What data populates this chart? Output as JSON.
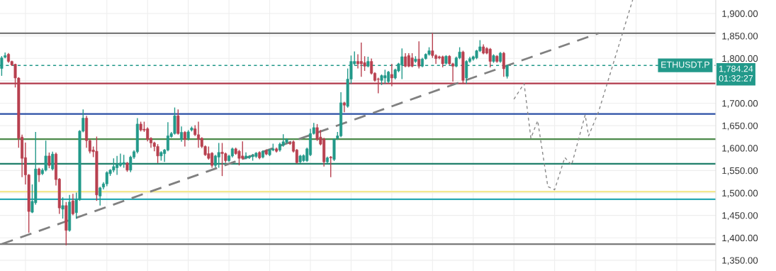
{
  "chart_data": {
    "type": "candlestick",
    "categories": [
      null,
      null,
      null,
      null,
      null,
      null,
      null,
      null,
      null,
      null,
      null,
      null,
      null,
      null,
      null,
      null,
      null,
      null,
      null,
      null,
      null,
      null,
      null,
      null,
      null,
      null,
      null,
      null,
      null,
      null,
      null,
      null,
      null,
      null,
      null,
      null,
      null,
      null,
      null,
      null,
      null,
      null,
      null,
      null,
      null,
      null,
      null,
      null,
      null,
      null,
      null,
      null,
      null,
      null,
      null,
      null,
      null,
      null,
      null,
      null,
      null,
      null,
      null,
      null,
      null,
      null,
      null,
      null,
      null,
      null,
      null,
      null,
      null,
      null,
      null,
      null,
      null,
      null,
      null,
      null,
      null,
      null,
      null,
      null,
      null,
      null,
      null,
      null,
      null,
      null,
      null,
      null,
      null,
      null,
      null,
      null,
      null,
      null,
      null,
      null,
      null,
      null,
      null,
      null,
      null,
      null,
      null,
      null,
      null,
      null,
      null,
      null,
      null,
      null,
      null,
      null,
      null,
      null,
      null,
      null,
      null,
      null,
      null,
      null,
      null,
      null,
      null,
      null,
      null,
      null,
      null,
      null,
      null,
      null,
      null,
      null,
      null,
      null,
      null,
      null,
      null,
      null,
      null,
      null,
      null,
      null,
      null,
      null,
      null,
      null,
      null,
      null,
      null,
      null,
      null,
      null,
      null,
      null,
      null,
      null,
      null,
      null,
      null,
      null,
      null,
      null,
      null,
      null,
      null,
      null,
      null,
      null,
      null,
      null,
      null,
      null,
      null,
      null,
      null,
      null,
      null,
      null,
      null,
      null,
      null,
      null,
      null,
      null,
      null,
      null,
      null,
      null,
      null,
      null,
      null,
      null,
      null,
      null,
      null,
      null,
      null,
      null,
      null,
      null,
      null,
      null,
      null,
      null,
      null,
      null,
      null
    ],
    "ohlc": [
      [
        1777.3,
        1805,
        1761,
        1801.0
      ],
      [
        1802.5,
        1813,
        1800,
        1806.2
      ],
      [
        1808.9,
        1812,
        1790,
        1793.1
      ],
      [
        1793,
        1795,
        1783,
        1785.2
      ],
      [
        1786.7,
        1788,
        1735.1,
        1756.2
      ],
      [
        1756,
        1758,
        1600.8,
        1621.9
      ],
      [
        1624.5,
        1630,
        1535,
        1577.1
      ],
      [
        1578.7,
        1612,
        1519,
        1540.3
      ],
      [
        1540,
        1542,
        1411.2,
        1458.6
      ],
      [
        1457,
        1519,
        1455,
        1481.3
      ],
      [
        1478.1,
        1636.1,
        1474,
        1553.4
      ],
      [
        1553.4,
        1556,
        1524.5,
        1540.3
      ],
      [
        1542.9,
        1555,
        1540,
        1550.8
      ],
      [
        1550.8,
        1616.6,
        1548,
        1582.4
      ],
      [
        1582.4,
        1590,
        1555,
        1561.3
      ],
      [
        1553.4,
        1591.9,
        1550,
        1586.6
      ],
      [
        1586.6,
        1590,
        1516.5,
        1529.7
      ],
      [
        1530.8,
        1533,
        1453.4,
        1466.5
      ],
      [
        1463.9,
        1490.2,
        1442.8,
        1471.8
      ],
      [
        1471.8,
        1479.7,
        1383.3,
        1416.5
      ],
      [
        1416.5,
        1495.5,
        1413.8,
        1479.7
      ],
      [
        1482.3,
        1498.1,
        1450,
        1453.4
      ],
      [
        1456,
        1500.8,
        1442.8,
        1484.9
      ],
      [
        1484.9,
        1640,
        1482.3,
        1637.7
      ],
      [
        1637.7,
        1686.1,
        1635,
        1666.7
      ],
      [
        1666.7,
        1672,
        1600.8,
        1616.6
      ],
      [
        1616.6,
        1620,
        1588,
        1592.9
      ],
      [
        1595.6,
        1603.5,
        1579.8,
        1591.9
      ],
      [
        1592.9,
        1625.6,
        1482.3,
        1495.5
      ],
      [
        1492.9,
        1513.9,
        1471.8,
        1511.3
      ],
      [
        1512.9,
        1524,
        1508,
        1520.2
      ],
      [
        1520.2,
        1548,
        1515,
        1545.5
      ],
      [
        1542.9,
        1553,
        1538,
        1550.8
      ],
      [
        1550.8,
        1577.1,
        1546,
        1558.7
      ],
      [
        1556.1,
        1582.4,
        1540.3,
        1564.0
      ],
      [
        1561.3,
        1587.6,
        1558,
        1566.6
      ],
      [
        1564.0,
        1585.0,
        1556.1,
        1567.6
      ],
      [
        1566.6,
        1569,
        1547,
        1550.8
      ],
      [
        1550.8,
        1583,
        1546,
        1579.8
      ],
      [
        1579.8,
        1595,
        1576,
        1591.9
      ],
      [
        1591.9,
        1666.7,
        1588,
        1653.5
      ],
      [
        1653.5,
        1658.8,
        1637,
        1640.3
      ],
      [
        1642,
        1658.8,
        1636,
        1640
      ],
      [
        1643,
        1646,
        1615,
        1619.3
      ],
      [
        1621.9,
        1624,
        1600.8,
        1611.4
      ],
      [
        1611.4,
        1614,
        1593,
        1603.5
      ],
      [
        1603.5,
        1608.7,
        1566.6,
        1582.4
      ],
      [
        1582.4,
        1593,
        1571.9,
        1590.3
      ],
      [
        1587.6,
        1598,
        1569.2,
        1595.6
      ],
      [
        1595.6,
        1657.7,
        1593,
        1627.2
      ],
      [
        1625.6,
        1636,
        1623,
        1632.4
      ],
      [
        1632.4,
        1690.4,
        1630,
        1671.9
      ],
      [
        1671.9,
        1686.1,
        1630,
        1632.4
      ],
      [
        1619.3,
        1648.2,
        1614,
        1635.1
      ],
      [
        1635.1,
        1638,
        1603.5,
        1619.3
      ],
      [
        1621.9,
        1640,
        1617,
        1636.1
      ],
      [
        1640.3,
        1648,
        1637,
        1644.5
      ],
      [
        1643,
        1650.9,
        1627,
        1629.8
      ],
      [
        1629.8,
        1658.8,
        1600.8,
        1619.3
      ],
      [
        1621.9,
        1624,
        1600,
        1603.5
      ],
      [
        1603.5,
        1606,
        1582.4,
        1585
      ],
      [
        1587.6,
        1603.5,
        1574,
        1577.1
      ],
      [
        1588.7,
        1591,
        1556.1,
        1561.3
      ],
      [
        1561.3,
        1585,
        1557,
        1582.4
      ],
      [
        1579.8,
        1611.4,
        1556.1,
        1590.3
      ],
      [
        1590.8,
        1611.4,
        1537.6,
        1587.6
      ],
      [
        1587.6,
        1590,
        1567,
        1571.9
      ],
      [
        1571.9,
        1585,
        1569,
        1582.4
      ],
      [
        1582.4,
        1601,
        1579,
        1598.2
      ],
      [
        1598.2,
        1601,
        1585,
        1587.6
      ],
      [
        1592.9,
        1596,
        1561.3,
        1577.1
      ],
      [
        1582.4,
        1615.1,
        1574,
        1577.1
      ],
      [
        1578.2,
        1590.3,
        1575,
        1582.4
      ],
      [
        1578.7,
        1584,
        1576,
        1581.3
      ],
      [
        1580.8,
        1587,
        1571.9,
        1583.4
      ],
      [
        1581.3,
        1591,
        1578,
        1588.7
      ],
      [
        1590.3,
        1593,
        1575,
        1578.2
      ],
      [
        1579.8,
        1595,
        1577,
        1591.9
      ],
      [
        1594,
        1597,
        1584,
        1586.6
      ],
      [
        1585.0,
        1598,
        1582,
        1595.6
      ],
      [
        1595.6,
        1609.8,
        1593,
        1598.2
      ],
      [
        1598.2,
        1601,
        1590,
        1592.9
      ],
      [
        1595.6,
        1612,
        1592,
        1608.7
      ],
      [
        1606.1,
        1630.8,
        1603,
        1614
      ],
      [
        1613,
        1622,
        1610,
        1619.3
      ],
      [
        1611.4,
        1614,
        1607,
        1609.8
      ],
      [
        1614,
        1617,
        1590,
        1592.9
      ],
      [
        1595.6,
        1598,
        1565,
        1567.6
      ],
      [
        1569.2,
        1585,
        1566,
        1582.4
      ],
      [
        1571.9,
        1586,
        1569,
        1583.4
      ],
      [
        1571.9,
        1601,
        1569,
        1598.2
      ],
      [
        1585,
        1643,
        1582,
        1632.4
      ],
      [
        1632.4,
        1656.1,
        1630,
        1645.6
      ],
      [
        1645.6,
        1653.5,
        1616,
        1619.3
      ],
      [
        1624.5,
        1640.3,
        1606,
        1608.7
      ],
      [
        1620.3,
        1623,
        1558.7,
        1569.2
      ],
      [
        1569.2,
        1581,
        1566,
        1578.2
      ],
      [
        1580,
        1582,
        1535,
        1578
      ],
      [
        1574.5,
        1622,
        1571,
        1619.3
      ],
      [
        1621.9,
        1636.1,
        1618,
        1627.2
      ],
      [
        1627.2,
        1724.6,
        1624,
        1700.9
      ],
      [
        1700.9,
        1703,
        1679.8,
        1695.6
      ],
      [
        1693,
        1777.3,
        1690,
        1753.6
      ],
      [
        1753.6,
        1806.2,
        1743,
        1793.1
      ],
      [
        1787.8,
        1815.2,
        1785,
        1793.1
      ],
      [
        1793.1,
        1808.9,
        1777.3,
        1787.8
      ],
      [
        1793.1,
        1835.2,
        1758.8,
        1787.8
      ],
      [
        1790.4,
        1804.7,
        1772,
        1782.5
      ],
      [
        1782.5,
        1803.6,
        1780,
        1793.1
      ],
      [
        1793.1,
        1799.4,
        1764,
        1766.7
      ],
      [
        1766.7,
        1769,
        1748,
        1750.9
      ],
      [
        1754,
        1757,
        1722,
        1753
      ],
      [
        1750.9,
        1764,
        1740.4,
        1761.5
      ],
      [
        1756.2,
        1774.6,
        1743,
        1761.5
      ],
      [
        1748.3,
        1772,
        1745,
        1769.4
      ],
      [
        1764.1,
        1787.8,
        1737.8,
        1756.2
      ],
      [
        1756.2,
        1777,
        1753,
        1774.6
      ],
      [
        1772,
        1790,
        1769,
        1787.8
      ],
      [
        1785.2,
        1822,
        1753.6,
        1803.6
      ],
      [
        1803.6,
        1811.5,
        1780,
        1782.5
      ],
      [
        1806.2,
        1811.5,
        1780,
        1782.5
      ],
      [
        1801,
        1811.5,
        1780,
        1782.5
      ],
      [
        1793.1,
        1804.7,
        1790,
        1798.3
      ],
      [
        1798.3,
        1837.8,
        1777.3,
        1782.5
      ],
      [
        1782.5,
        1801,
        1780,
        1798.3
      ],
      [
        1799.4,
        1811,
        1797,
        1808.9
      ],
      [
        1808.9,
        1824.7,
        1806,
        1816.8
      ],
      [
        1816.8,
        1856.3,
        1801,
        1806.2
      ],
      [
        1806.2,
        1809,
        1787.8,
        1799.4
      ],
      [
        1803.6,
        1806,
        1798,
        1801
      ],
      [
        1803.6,
        1806,
        1779.9,
        1787.8
      ],
      [
        1788.8,
        1807,
        1786,
        1804.7
      ],
      [
        1804.7,
        1807,
        1785,
        1787.8
      ],
      [
        1787.8,
        1790,
        1748.3,
        1782.5
      ],
      [
        1782.5,
        1804,
        1780,
        1801
      ],
      [
        1801,
        1824.7,
        1798,
        1814.1
      ],
      [
        1814.1,
        1817,
        1743,
        1750.9
      ],
      [
        1756.2,
        1796,
        1743,
        1793.1
      ],
      [
        1793.1,
        1803.6,
        1790,
        1799.4
      ],
      [
        1798.3,
        1806,
        1795,
        1803.6
      ],
      [
        1801,
        1819,
        1798,
        1816.8
      ],
      [
        1816.8,
        1840.5,
        1814,
        1825.7
      ],
      [
        1825.7,
        1831,
        1809,
        1811.5
      ],
      [
        1822,
        1825,
        1809,
        1811.5
      ],
      [
        1820.5,
        1823,
        1779.9,
        1793.1
      ],
      [
        1793.1,
        1809,
        1790,
        1806.2
      ],
      [
        1804.7,
        1807,
        1790,
        1793.1
      ],
      [
        1793.1,
        1814,
        1790,
        1811.5
      ],
      [
        1811.5,
        1814,
        1759,
        1776.7
      ],
      [
        1760,
        1786,
        1755,
        1784.24
      ],
      null,
      null,
      null,
      null,
      null,
      null,
      null,
      null,
      null,
      null,
      null,
      null,
      null,
      null,
      null,
      null,
      null,
      null,
      null,
      null,
      null,
      null,
      null,
      null,
      null,
      null,
      null,
      null,
      null,
      null,
      null,
      null,
      null,
      null,
      null,
      null,
      null,
      null,
      null,
      null,
      null,
      null,
      null,
      null,
      null,
      null,
      null,
      null,
      null,
      null,
      null,
      null,
      null,
      null,
      null,
      null,
      null,
      null,
      null,
      null,
      null
    ],
    "colors": [
      "#22998a",
      "#22998a",
      "#b8404f",
      "#b8404f",
      "#b8404f",
      "#b8404f",
      "#b8404f",
      "#b8404f",
      "#b8404f",
      "#22998a",
      "#22998a",
      "#b8404f",
      "#22998a",
      "#22998a",
      "#b8404f",
      "#22998a",
      "#b8404f",
      "#b8404f",
      "#22998a",
      "#b8404f",
      "#22998a",
      "#b8404f",
      "#22998a",
      "#22998a",
      "#22998a",
      "#b8404f",
      "#b8404f",
      "#b8404f",
      "#b8404f",
      "#22998a",
      "#22998a",
      "#22998a",
      "#22998a",
      "#22998a",
      "#22998a",
      "#22998a",
      "#22998a",
      "#b8404f",
      "#22998a",
      "#22998a",
      "#22998a",
      "#b8404f",
      "#b8404f",
      "#b8404f",
      "#b8404f",
      "#b8404f",
      "#b8404f",
      "#22998a",
      "#22998a",
      "#22998a",
      "#22998a",
      "#22998a",
      "#b8404f",
      "#22998a",
      "#b8404f",
      "#22998a",
      "#22998a",
      "#b8404f",
      "#b8404f",
      "#b8404f",
      "#b8404f",
      "#b8404f",
      "#b8404f",
      "#22998a",
      "#22998a",
      "#b8404f",
      "#b8404f",
      "#22998a",
      "#22998a",
      "#b8404f",
      "#b8404f",
      "#b8404f",
      "#22998a",
      "#22998a",
      "#22998a",
      "#22998a",
      "#b8404f",
      "#22998a",
      "#b8404f",
      "#22998a",
      "#22998a",
      "#b8404f",
      "#22998a",
      "#22998a",
      "#22998a",
      "#b8404f",
      "#b8404f",
      "#b8404f",
      "#22998a",
      "#22998a",
      "#22998a",
      "#22998a",
      "#22998a",
      "#b8404f",
      "#b8404f",
      "#b8404f",
      "#22998a",
      "#b8404f",
      "#22998a",
      "#22998a",
      "#22998a",
      "#b8404f",
      "#22998a",
      "#22998a",
      "#22998a",
      "#b8404f",
      "#b8404f",
      "#b8404f",
      "#22998a",
      "#b8404f",
      "#b8404f",
      "#b8404f",
      "#22998a",
      "#22998a",
      "#22998a",
      "#b8404f",
      "#22998a",
      "#22998a",
      "#22998a",
      "#b8404f",
      "#b8404f",
      "#b8404f",
      "#22998a",
      "#b8404f",
      "#22998a",
      "#22998a",
      "#22998a",
      "#b8404f",
      "#b8404f",
      "#b8404f",
      "#b8404f",
      "#22998a",
      "#b8404f",
      "#b8404f",
      "#22998a",
      "#22998a",
      "#b8404f",
      "#22998a",
      "#22998a",
      "#22998a",
      "#22998a",
      "#22998a",
      "#b8404f",
      "#b8404f",
      "#b8404f",
      "#22998a",
      "#b8404f",
      "#22998a",
      "#b8404f",
      "#22998a",
      null,
      null,
      null,
      null,
      null,
      null,
      null,
      null,
      null,
      null,
      null,
      null,
      null,
      null,
      null,
      null,
      null,
      null,
      null,
      null,
      null,
      null,
      null,
      null,
      null,
      null,
      null,
      null,
      null,
      null,
      null,
      null,
      null,
      null,
      null,
      null,
      null,
      null,
      null,
      null,
      null,
      null,
      null,
      null,
      null,
      null,
      null,
      null,
      null,
      null,
      null,
      null,
      null,
      null,
      null,
      null,
      null,
      null,
      null,
      null,
      null
    ],
    "series": [
      {
        "type": "line",
        "color": "#808080",
        "line_style": "dashed",
        "values": [
          1386,
          null,
          null,
          null,
          null,
          null,
          null,
          null,
          null,
          null,
          null,
          null,
          null,
          null,
          null,
          null,
          null,
          null,
          null,
          null,
          null,
          null,
          null,
          null,
          null,
          null,
          null,
          null,
          null,
          null,
          null,
          null,
          null,
          null,
          null,
          null,
          null,
          null,
          null,
          null,
          null,
          null,
          null,
          null,
          null,
          null,
          null,
          null,
          null,
          null,
          null,
          null,
          null,
          null,
          null,
          null,
          null,
          null,
          null,
          null,
          null,
          null,
          null,
          null,
          null,
          null,
          null,
          null,
          null,
          null,
          null,
          null,
          null,
          null,
          null,
          null,
          null,
          null,
          null,
          null,
          null,
          null,
          null,
          null,
          null,
          null,
          null,
          null,
          null,
          null,
          null,
          null,
          null,
          null,
          null,
          null,
          null,
          null,
          null,
          null,
          null,
          null,
          null,
          null,
          null,
          null,
          null,
          null,
          null,
          null,
          null,
          null,
          null,
          null,
          null,
          null,
          null,
          null,
          null,
          null,
          null,
          null,
          null,
          null,
          null,
          null,
          null,
          null,
          null,
          null,
          null,
          null,
          null,
          null,
          null,
          null,
          null,
          null,
          null,
          null,
          null,
          null,
          null,
          null,
          null,
          null,
          null,
          null,
          null,
          null,
          null,
          null,
          null,
          null,
          null,
          null,
          null,
          null,
          null,
          null,
          null,
          null,
          null,
          null,
          null,
          null,
          null,
          null,
          null,
          null,
          null,
          null,
          null,
          null,
          null,
          null,
          1856,
          null,
          null,
          null,
          null,
          null,
          null,
          null,
          null,
          null,
          null,
          null,
          null,
          null,
          null,
          null,
          null,
          null,
          null,
          null,
          null,
          null,
          null,
          null,
          null,
          null,
          null,
          null,
          null,
          null,
          null,
          null,
          null,
          null,
          null
        ]
      },
      {
        "type": "line",
        "color": "#8a8a8a",
        "line_style": "dotted",
        "values": [
          null,
          null,
          null,
          null,
          null,
          null,
          null,
          null,
          null,
          null,
          null,
          null,
          null,
          null,
          null,
          null,
          null,
          null,
          null,
          null,
          null,
          null,
          null,
          null,
          null,
          null,
          null,
          null,
          null,
          null,
          null,
          null,
          null,
          null,
          null,
          null,
          null,
          null,
          null,
          null,
          null,
          null,
          null,
          null,
          null,
          null,
          null,
          null,
          null,
          null,
          null,
          null,
          null,
          null,
          null,
          null,
          null,
          null,
          null,
          null,
          null,
          null,
          null,
          null,
          null,
          null,
          null,
          null,
          null,
          null,
          null,
          null,
          null,
          null,
          null,
          null,
          null,
          null,
          null,
          null,
          null,
          null,
          null,
          null,
          null,
          null,
          null,
          null,
          null,
          null,
          null,
          null,
          null,
          null,
          null,
          null,
          null,
          null,
          null,
          null,
          null,
          null,
          null,
          null,
          null,
          null,
          null,
          null,
          null,
          null,
          null,
          null,
          null,
          null,
          null,
          null,
          null,
          null,
          null,
          null,
          null,
          null,
          null,
          null,
          null,
          null,
          null,
          null,
          null,
          null,
          null,
          null,
          null,
          null,
          null,
          null,
          null,
          null,
          null,
          null,
          null,
          null,
          null,
          null,
          null,
          null,
          null,
          null,
          null,
          null,
          null,
          1709,
          null,
          null,
          1744,
          null,
          1622,
          null,
          1661,
          null,
          null,
          1514,
          null,
          1507,
          null,
          null,
          1579,
          null,
          1562,
          null,
          null,
          null,
          1674,
          1627,
          null,
          null,
          1682,
          null,
          null,
          null,
          null,
          null,
          null,
          null,
          null,
          null,
          1930,
          null,
          null,
          null,
          null,
          null,
          null,
          null,
          null,
          null,
          null,
          null,
          null,
          null,
          null,
          null,
          null,
          null,
          null,
          null,
          null,
          null,
          null,
          null,
          null
        ]
      }
    ],
    "ref_lines": [
      {
        "axis": "y",
        "value": 1856,
        "color": "#7a7a7a",
        "line_style": "solid"
      },
      {
        "axis": "y",
        "value": 1744,
        "color": "#b23a4c",
        "line_style": "solid"
      },
      {
        "axis": "y",
        "value": 1676,
        "color": "#2b4fa5",
        "line_style": "solid"
      },
      {
        "axis": "y",
        "value": 1620,
        "color": "#4c8a4a",
        "line_style": "solid"
      },
      {
        "axis": "y",
        "value": 1565,
        "color": "#1f7f6a",
        "line_style": "solid"
      },
      {
        "axis": "y",
        "value": 1503,
        "color": "#f3e88f",
        "line_style": "solid"
      },
      {
        "axis": "y",
        "value": 1486,
        "color": "#2aa9b2",
        "line_style": "solid"
      },
      {
        "axis": "y",
        "value": 1386,
        "color": "#7a7a7a",
        "line_style": "solid"
      },
      {
        "axis": "y",
        "value": 1784.24,
        "label": "1,784.24",
        "color": "#22998a",
        "line_style": "dotted"
      }
    ],
    "annotations": [
      "ETHUSDT.P",
      "01:32:27"
    ],
    "ylim": [
      1326,
      1930
    ],
    "yticks": [
      {
        "value": 1350,
        "label": "1,350.00"
      },
      {
        "value": 1400,
        "label": "1,400.00"
      },
      {
        "value": 1450,
        "label": "1,450.00"
      },
      {
        "value": 1500,
        "label": "1,500.00"
      },
      {
        "value": 1550,
        "label": "1,550.00"
      },
      {
        "value": 1600,
        "label": "1,600.00"
      },
      {
        "value": 1650,
        "label": "1,650.00"
      },
      {
        "value": 1700,
        "label": "1,700.00"
      },
      {
        "value": 1750,
        "label": null
      },
      {
        "value": 1800,
        "label": "1,800.00"
      },
      {
        "value": 1850,
        "label": "1,850.00"
      },
      {
        "value": 1900,
        "label": "1,900.00"
      }
    ],
    "tick_labels": "y",
    "grid": true
  }
}
